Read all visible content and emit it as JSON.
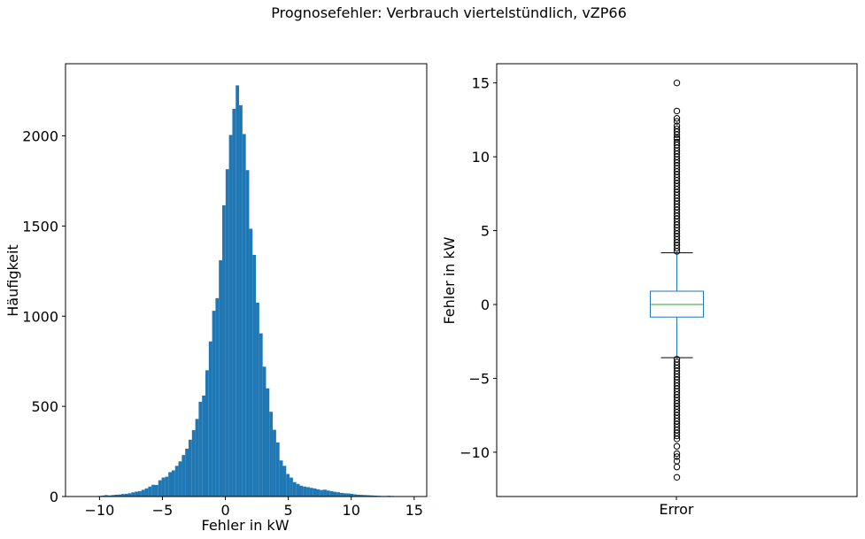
{
  "figure_title": "Prognosefehler: Verbrauch viertelstündlich, vZP66",
  "colors": {
    "bar": "#1f77b4",
    "box": "#1f77b4",
    "median": "#2ca02c",
    "axis": "#000000"
  },
  "chart_data": [
    {
      "type": "bar",
      "subtype": "histogram",
      "xlabel": "Fehler in kW",
      "ylabel": "Häufigkeit",
      "xlim": [
        -12.7,
        16.0
      ],
      "ylim": [
        0,
        2400
      ],
      "xticks": [
        -10,
        -5,
        0,
        5,
        10,
        15
      ],
      "yticks": [
        0,
        500,
        1000,
        1500,
        2000
      ],
      "bin_start": -11.75,
      "bin_width": 0.2675,
      "values": [
        0,
        0,
        0,
        0,
        0,
        2,
        3,
        5,
        8,
        6,
        8,
        10,
        11,
        14,
        15,
        18,
        23,
        27,
        30,
        37,
        45,
        55,
        65,
        64,
        90,
        105,
        110,
        135,
        145,
        170,
        195,
        230,
        265,
        315,
        368,
        430,
        525,
        560,
        700,
        860,
        1030,
        1100,
        1310,
        1615,
        1815,
        2005,
        2150,
        2280,
        2170,
        2010,
        1810,
        1485,
        1340,
        1075,
        905,
        720,
        600,
        470,
        370,
        300,
        200,
        170,
        125,
        105,
        80,
        70,
        60,
        55,
        52,
        48,
        45,
        40,
        36,
        38,
        33,
        30,
        26,
        24,
        20,
        18,
        17,
        15,
        12,
        10,
        9,
        8,
        7,
        6,
        5,
        4,
        3,
        3,
        4,
        3,
        0,
        0,
        0,
        0,
        0,
        2,
        0,
        0,
        0,
        0,
        1
      ]
    },
    {
      "type": "box",
      "category": "Error",
      "ylabel": "Fehler in kW",
      "ylim": [
        -13.0,
        16.3
      ],
      "yticks": [
        -10,
        -5,
        0,
        5,
        10,
        15
      ],
      "q1": -0.85,
      "median": 0.0,
      "q3": 0.9,
      "whisker_low": -3.6,
      "whisker_high": 3.5,
      "outliers": [
        15.0,
        13.1,
        12.6,
        12.4,
        12.1,
        11.9,
        11.7,
        11.5,
        11.3,
        11.2,
        11.0,
        10.8,
        10.6,
        10.4,
        10.2,
        10.0,
        9.8,
        9.6,
        9.4,
        9.2,
        9.0,
        8.8,
        8.6,
        8.4,
        8.2,
        8.0,
        7.8,
        7.6,
        7.4,
        7.2,
        7.0,
        6.8,
        6.6,
        6.4,
        6.2,
        6.0,
        5.8,
        5.6,
        5.4,
        5.2,
        5.0,
        4.8,
        4.6,
        4.4,
        4.2,
        4.0,
        3.8,
        3.6,
        -3.7,
        -3.9,
        -4.1,
        -4.3,
        -4.5,
        -4.7,
        -4.9,
        -5.1,
        -5.3,
        -5.5,
        -5.7,
        -5.9,
        -6.1,
        -6.3,
        -6.5,
        -6.7,
        -6.9,
        -7.1,
        -7.3,
        -7.5,
        -7.7,
        -7.9,
        -8.1,
        -8.3,
        -8.5,
        -8.7,
        -8.9,
        -9.1,
        -9.6,
        -10.1,
        -10.3,
        -10.6,
        -11.0,
        -11.7
      ]
    }
  ]
}
